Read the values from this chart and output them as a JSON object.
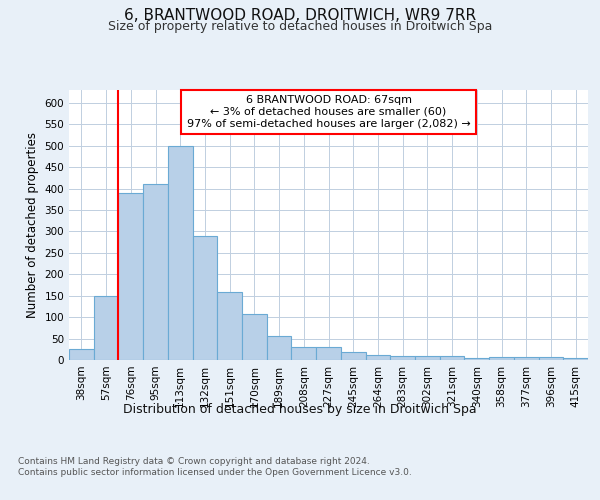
{
  "title": "6, BRANTWOOD ROAD, DROITWICH, WR9 7RR",
  "subtitle": "Size of property relative to detached houses in Droitwich Spa",
  "xlabel": "Distribution of detached houses by size in Droitwich Spa",
  "ylabel": "Number of detached properties",
  "categories": [
    "38sqm",
    "57sqm",
    "76sqm",
    "95sqm",
    "113sqm",
    "132sqm",
    "151sqm",
    "170sqm",
    "189sqm",
    "208sqm",
    "227sqm",
    "245sqm",
    "264sqm",
    "283sqm",
    "302sqm",
    "321sqm",
    "340sqm",
    "358sqm",
    "377sqm",
    "396sqm",
    "415sqm"
  ],
  "values": [
    25,
    150,
    390,
    410,
    500,
    290,
    158,
    108,
    55,
    30,
    30,
    18,
    12,
    10,
    10,
    10,
    5,
    7,
    7,
    6,
    5
  ],
  "bar_color": "#b8d0e8",
  "bar_edge_color": "#6aaad4",
  "annotation_text": "6 BRANTWOOD ROAD: 67sqm\n← 3% of detached houses are smaller (60)\n97% of semi-detached houses are larger (2,082) →",
  "annotation_box_color": "white",
  "annotation_box_edge": "red",
  "vline_color": "red",
  "vline_x": 1.5,
  "ylim": [
    0,
    630
  ],
  "yticks": [
    0,
    50,
    100,
    150,
    200,
    250,
    300,
    350,
    400,
    450,
    500,
    550,
    600
  ],
  "footer": "Contains HM Land Registry data © Crown copyright and database right 2024.\nContains public sector information licensed under the Open Government Licence v3.0.",
  "bg_color": "#e8f0f8",
  "plot_bg_color": "white",
  "grid_color": "#c0cfe0",
  "title_fontsize": 11,
  "subtitle_fontsize": 9,
  "tick_fontsize": 7.5,
  "ylabel_fontsize": 8.5,
  "xlabel_fontsize": 9,
  "annot_fontsize": 8,
  "footer_fontsize": 6.5
}
